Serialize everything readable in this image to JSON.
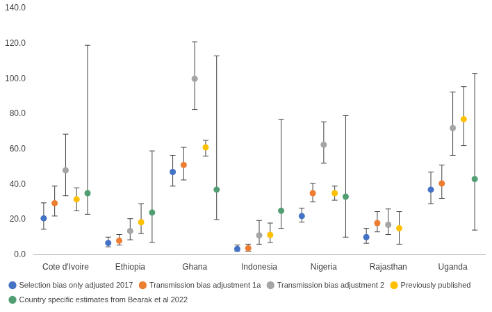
{
  "chart_data": {
    "type": "dot_error",
    "categories": [
      "Cote d'Ivoire",
      "Ethiopia",
      "Ghana",
      "Indonesia",
      "Nigeria",
      "Rajasthan",
      "Uganda"
    ],
    "ylim": [
      0,
      140
    ],
    "yticks": [
      {
        "value": 0,
        "label": "0.0"
      },
      {
        "value": 20,
        "label": "20.0"
      },
      {
        "value": 40,
        "label": "40.0"
      },
      {
        "value": 60,
        "label": "60.0"
      },
      {
        "value": 80,
        "label": "80.0"
      },
      {
        "value": 100,
        "label": "100.0"
      },
      {
        "value": 120,
        "label": "120.0"
      },
      {
        "value": 140,
        "label": "140.0"
      }
    ],
    "grid": false,
    "legend": "bottom",
    "marker": "circle",
    "series": [
      {
        "name": "Selection bias only adjusted 2017",
        "color": "#4472c4",
        "values": [
          20.7,
          6.7,
          47,
          3.3,
          22,
          10,
          37
        ],
        "lower": [
          14.5,
          4.5,
          39,
          2,
          18.5,
          6.5,
          29
        ],
        "upper": [
          29.5,
          10,
          56.5,
          5.5,
          26.5,
          15,
          47
        ]
      },
      {
        "name": "Transmission bias adjustment 1a",
        "color": "#ed7d31",
        "values": [
          29.3,
          8,
          51,
          3.7,
          35,
          18,
          40.5
        ],
        "lower": [
          22,
          5.5,
          42.5,
          2,
          30,
          13,
          32
        ],
        "upper": [
          39,
          11.5,
          61,
          6,
          40.5,
          24.5,
          51
        ]
      },
      {
        "name": "Transmission bias adjustment 2",
        "color": "#a5a5a5",
        "values": [
          48,
          13.5,
          100,
          11,
          62.5,
          17,
          72
        ],
        "lower": [
          33.5,
          8.5,
          82.5,
          6,
          52,
          11.5,
          56.5
        ],
        "upper": [
          68.5,
          20.5,
          121,
          19.5,
          75.5,
          26,
          92.5
        ]
      },
      {
        "name": "Previously published",
        "color": "#ffc000",
        "values": [
          31.5,
          18.5,
          61,
          11.3,
          35,
          15,
          77
        ],
        "lower": [
          25,
          12,
          56,
          7,
          31,
          6,
          62
        ],
        "upper": [
          38,
          29,
          65,
          18,
          39,
          24.5,
          95.5
        ]
      },
      {
        "name": "Country specific estimates from Bearak et al 2022",
        "color": "#509e72",
        "values": [
          35,
          24,
          37,
          25,
          33,
          null,
          43
        ],
        "lower": [
          23,
          7,
          20,
          15,
          10,
          null,
          14
        ],
        "upper": [
          119,
          59,
          113,
          77,
          79,
          null,
          103
        ]
      }
    ]
  }
}
